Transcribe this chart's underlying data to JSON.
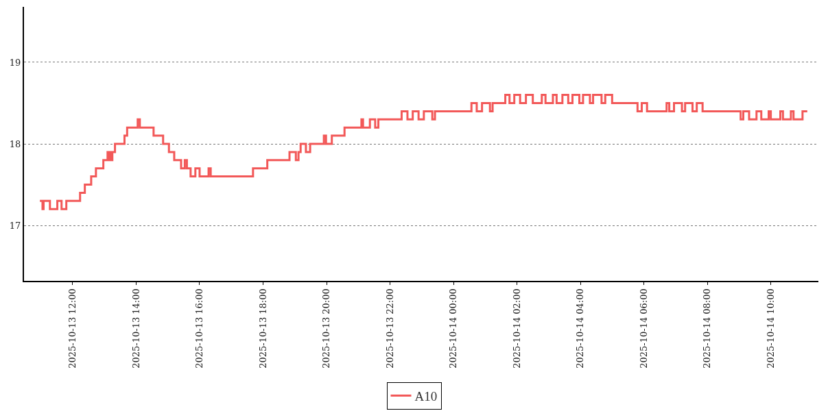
{
  "chart_data": {
    "type": "step",
    "x": [
      "2025-10-13T10:58",
      "2025-10-13T11:03",
      "2025-10-13T11:05",
      "2025-10-13T11:17",
      "2025-10-13T11:31",
      "2025-10-13T11:39",
      "2025-10-13T11:48",
      "2025-10-13T12:14",
      "2025-10-13T12:23",
      "2025-10-13T12:35",
      "2025-10-13T12:44",
      "2025-10-13T12:58",
      "2025-10-13T13:06",
      "2025-10-13T13:09",
      "2025-10-13T13:11",
      "2025-10-13T13:13",
      "2025-10-13T13:15",
      "2025-10-13T13:20",
      "2025-10-13T13:38",
      "2025-10-13T13:43",
      "2025-10-13T14:03",
      "2025-10-13T14:07",
      "2025-10-13T14:33",
      "2025-10-13T14:51",
      "2025-10-13T15:02",
      "2025-10-13T15:12",
      "2025-10-13T15:25",
      "2025-10-13T15:32",
      "2025-10-13T15:36",
      "2025-10-13T15:43",
      "2025-10-13T15:52",
      "2025-10-13T16:00",
      "2025-10-13T16:17",
      "2025-10-13T16:21",
      "2025-10-13T17:41",
      "2025-10-13T18:08",
      "2025-10-13T18:50",
      "2025-10-13T19:02",
      "2025-10-13T19:07",
      "2025-10-13T19:11",
      "2025-10-13T19:21",
      "2025-10-13T19:29",
      "2025-10-13T19:55",
      "2025-10-13T19:59",
      "2025-10-13T20:10",
      "2025-10-13T20:34",
      "2025-10-13T21:06",
      "2025-10-13T21:09",
      "2025-10-13T21:22",
      "2025-10-13T21:32",
      "2025-10-13T21:38",
      "2025-10-13T22:22",
      "2025-10-13T22:33",
      "2025-10-13T22:43",
      "2025-10-13T22:54",
      "2025-10-13T23:04",
      "2025-10-13T23:20",
      "2025-10-13T23:25",
      "2025-10-14T00:34",
      "2025-10-14T00:44",
      "2025-10-14T00:54",
      "2025-10-14T01:09",
      "2025-10-14T01:14",
      "2025-10-14T01:38",
      "2025-10-14T01:46",
      "2025-10-14T01:55",
      "2025-10-14T02:06",
      "2025-10-14T02:17",
      "2025-10-14T02:30",
      "2025-10-14T02:47",
      "2025-10-14T02:54",
      "2025-10-14T03:08",
      "2025-10-14T03:15",
      "2025-10-14T03:26",
      "2025-10-14T03:37",
      "2025-10-14T03:45",
      "2025-10-14T03:58",
      "2025-10-14T04:05",
      "2025-10-14T04:18",
      "2025-10-14T04:24",
      "2025-10-14T04:40",
      "2025-10-14T04:47",
      "2025-10-14T05:00",
      "2025-10-14T05:48",
      "2025-10-14T05:56",
      "2025-10-14T06:06",
      "2025-10-14T06:43",
      "2025-10-14T06:48",
      "2025-10-14T06:57",
      "2025-10-14T07:12",
      "2025-10-14T07:18",
      "2025-10-14T07:32",
      "2025-10-14T07:40",
      "2025-10-14T07:51",
      "2025-10-14T09:03",
      "2025-10-14T09:08",
      "2025-10-14T09:19",
      "2025-10-14T09:33",
      "2025-10-14T09:42",
      "2025-10-14T09:56",
      "2025-10-14T10:00",
      "2025-10-14T10:18",
      "2025-10-14T10:23",
      "2025-10-14T10:38",
      "2025-10-14T10:43",
      "2025-10-14T11:00",
      "2025-10-14T11:09"
    ],
    "series": [
      {
        "name": "A10",
        "color": "#f25858",
        "values": [
          17.3,
          17.2,
          17.3,
          17.2,
          17.3,
          17.2,
          17.3,
          17.4,
          17.5,
          17.6,
          17.7,
          17.8,
          17.9,
          17.8,
          17.9,
          17.8,
          17.9,
          18.0,
          18.1,
          18.2,
          18.3,
          18.2,
          18.1,
          18.0,
          17.9,
          17.8,
          17.7,
          17.8,
          17.7,
          17.6,
          17.7,
          17.6,
          17.7,
          17.6,
          17.7,
          17.8,
          17.9,
          17.8,
          17.9,
          18.0,
          17.9,
          18.0,
          18.1,
          18.0,
          18.1,
          18.2,
          18.3,
          18.2,
          18.3,
          18.2,
          18.3,
          18.4,
          18.3,
          18.4,
          18.3,
          18.4,
          18.3,
          18.4,
          18.5,
          18.4,
          18.5,
          18.4,
          18.5,
          18.6,
          18.5,
          18.6,
          18.5,
          18.6,
          18.5,
          18.6,
          18.5,
          18.6,
          18.5,
          18.6,
          18.5,
          18.6,
          18.5,
          18.6,
          18.5,
          18.6,
          18.5,
          18.6,
          18.5,
          18.4,
          18.5,
          18.4,
          18.5,
          18.4,
          18.5,
          18.4,
          18.5,
          18.4,
          18.5,
          18.4,
          18.3,
          18.4,
          18.3,
          18.4,
          18.3,
          18.4,
          18.3,
          18.4,
          18.3,
          18.4,
          18.3,
          18.4,
          18.4
        ]
      }
    ],
    "xlim": [
      "2025-10-13T10:28",
      "2025-10-14T11:30"
    ],
    "ylim": [
      16.32,
      19.68
    ],
    "xticks": [
      {
        "value": "2025-10-13T12:00",
        "label": "2025-10-13 12:00"
      },
      {
        "value": "2025-10-13T14:00",
        "label": "2025-10-13 14:00"
      },
      {
        "value": "2025-10-13T16:00",
        "label": "2025-10-13 16:00"
      },
      {
        "value": "2025-10-13T18:00",
        "label": "2025-10-13 18:00"
      },
      {
        "value": "2025-10-13T20:00",
        "label": "2025-10-13 20:00"
      },
      {
        "value": "2025-10-13T22:00",
        "label": "2025-10-13 22:00"
      },
      {
        "value": "2025-10-14T00:00",
        "label": "2025-10-14 00:00"
      },
      {
        "value": "2025-10-14T02:00",
        "label": "2025-10-14 02:00"
      },
      {
        "value": "2025-10-14T04:00",
        "label": "2025-10-14 04:00"
      },
      {
        "value": "2025-10-14T06:00",
        "label": "2025-10-14 06:00"
      },
      {
        "value": "2025-10-14T08:00",
        "label": "2025-10-14 08:00"
      },
      {
        "value": "2025-10-14T10:00",
        "label": "2025-10-14 10:00"
      }
    ],
    "yticks": [
      17,
      18,
      19
    ],
    "grid": "y",
    "legend": "bottom",
    "line_style": "solid"
  }
}
